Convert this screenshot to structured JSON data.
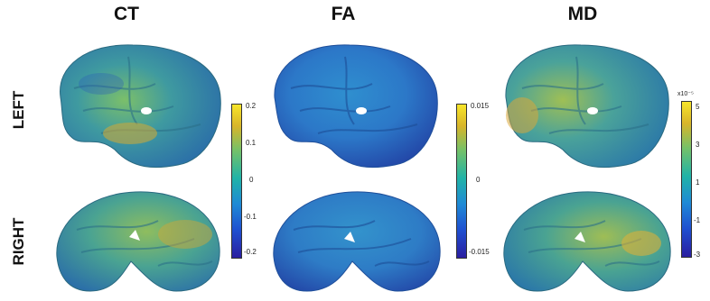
{
  "columns": [
    "CT",
    "FA",
    "MD"
  ],
  "rows": [
    "LEFT",
    "RIGHT"
  ],
  "colorbars": [
    {
      "ticks": [
        "0.2",
        "0.1",
        "0",
        "-0.1",
        "-0.2"
      ],
      "exponent": ""
    },
    {
      "ticks": [
        "0.015",
        "0",
        "-0.015"
      ],
      "exponent": ""
    },
    {
      "ticks": [
        "5",
        "3",
        "1",
        "-1",
        "-3"
      ],
      "exponent": "x10⁻⁵"
    }
  ],
  "colormap": [
    "#2a1ea0",
    "#1f4fd0",
    "#1f8ad6",
    "#21b3a7",
    "#74c169",
    "#d8b52a",
    "#f8e52a"
  ],
  "brain_base_colors": {
    "CT_left": "#3f9aa0",
    "FA_left": "#2c78c8",
    "MD_left": "#4aa29a",
    "CT_right": "#4aa392",
    "FA_right": "#2e7cc6",
    "MD_right": "#4aa392"
  }
}
